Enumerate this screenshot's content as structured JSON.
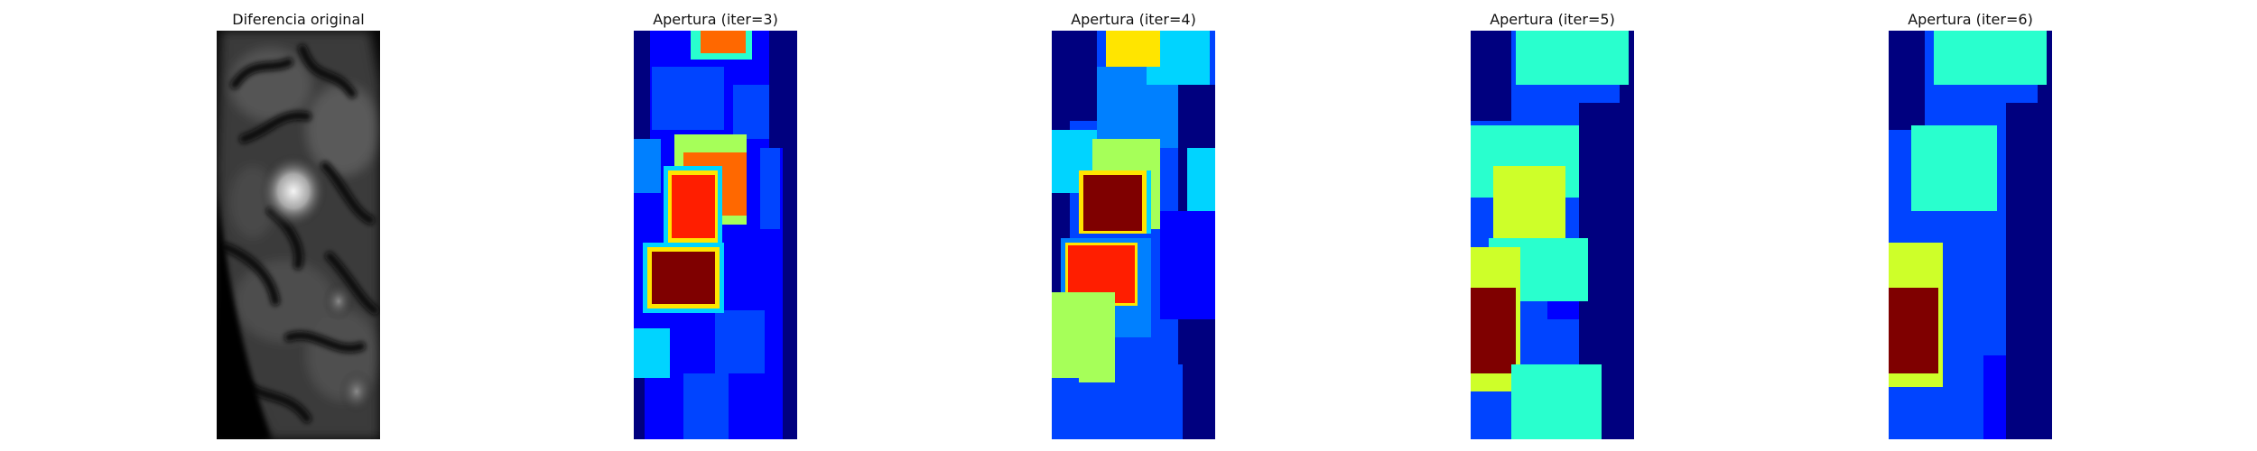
{
  "panels": [
    {
      "title": "Diferencia original",
      "icon": "grayscale-difference-image"
    },
    {
      "title": "Apertura (iter=3)",
      "icon": "jet-heatmap-image"
    },
    {
      "title": "Apertura (iter=4)",
      "icon": "jet-heatmap-image"
    },
    {
      "title": "Apertura (iter=5)",
      "icon": "jet-heatmap-image"
    },
    {
      "title": "Apertura (iter=6)",
      "icon": "jet-heatmap-image"
    }
  ],
  "colors": {
    "jet_darkblue": "#00007f",
    "jet_blue": "#0000ff",
    "jet_midblue": "#0044ff",
    "jet_lightblue": "#0080ff",
    "jet_cyan": "#00d4ff",
    "jet_aqua": "#29ffce",
    "jet_green": "#a6ff59",
    "jet_lime": "#ceff29",
    "jet_yellow": "#ffe500",
    "jet_orange": "#ff6800",
    "jet_red": "#ff1e00",
    "jet_darkred": "#7f0000"
  }
}
